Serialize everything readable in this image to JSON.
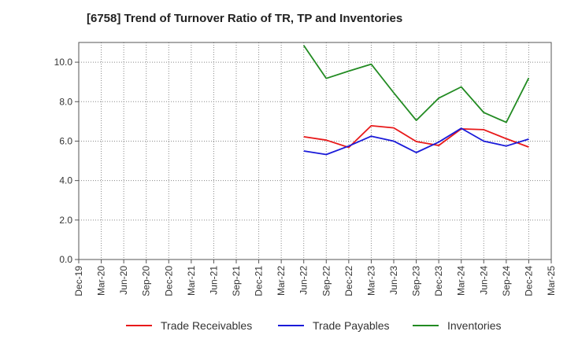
{
  "chart_data": {
    "type": "line",
    "title": "[6758]  Trend of Turnover Ratio of TR, TP and Inventories",
    "xlabel": "",
    "ylabel": "",
    "ylim": [
      0,
      11
    ],
    "yticks": [
      0,
      2,
      4,
      6,
      8,
      10
    ],
    "ytick_labels": [
      "0.0",
      "2.0",
      "4.0",
      "6.0",
      "8.0",
      "10.0"
    ],
    "categories": [
      "Dec-19",
      "Mar-20",
      "Jun-20",
      "Sep-20",
      "Dec-20",
      "Mar-21",
      "Jun-21",
      "Sep-21",
      "Dec-21",
      "Mar-22",
      "Jun-22",
      "Sep-22",
      "Dec-22",
      "Mar-23",
      "Jun-23",
      "Sep-23",
      "Dec-23",
      "Mar-24",
      "Jun-24",
      "Sep-24",
      "Dec-24",
      "Mar-25"
    ],
    "grid": true,
    "legend_position": "bottom",
    "series": [
      {
        "name": "Trade Receivables",
        "color": "#e8191a",
        "values": [
          null,
          null,
          null,
          null,
          null,
          null,
          null,
          null,
          null,
          null,
          6.22,
          6.05,
          5.68,
          6.78,
          6.67,
          5.98,
          5.78,
          6.62,
          6.58,
          6.12,
          5.7,
          null
        ]
      },
      {
        "name": "Trade Payables",
        "color": "#1a1ad9",
        "values": [
          null,
          null,
          null,
          null,
          null,
          null,
          null,
          null,
          null,
          null,
          5.5,
          5.32,
          5.75,
          6.25,
          6.0,
          5.42,
          5.95,
          6.65,
          6.0,
          5.75,
          6.1,
          null
        ]
      },
      {
        "name": "Inventories",
        "color": "#228b22",
        "values": [
          null,
          null,
          null,
          null,
          null,
          null,
          null,
          null,
          null,
          null,
          10.85,
          9.18,
          9.55,
          9.9,
          8.45,
          7.05,
          8.18,
          8.75,
          7.45,
          6.95,
          9.2,
          null
        ]
      }
    ]
  }
}
